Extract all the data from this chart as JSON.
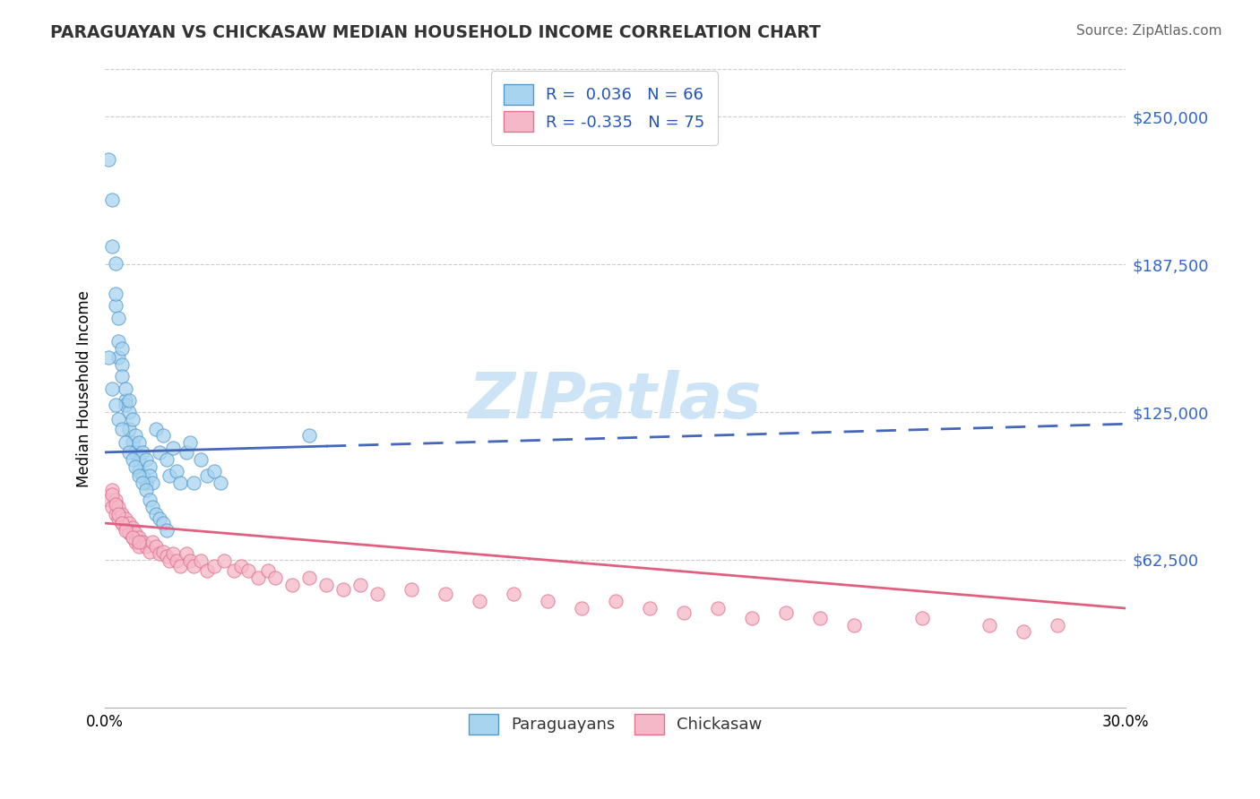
{
  "title": "PARAGUAYAN VS CHICKASAW MEDIAN HOUSEHOLD INCOME CORRELATION CHART",
  "source": "Source: ZipAtlas.com",
  "ylabel": "Median Household Income",
  "yticks": [
    0,
    62500,
    125000,
    187500,
    250000
  ],
  "ytick_labels": [
    "",
    "$62,500",
    "$125,000",
    "$187,500",
    "$250,000"
  ],
  "xlim": [
    0.0,
    0.3
  ],
  "ylim": [
    0,
    270000
  ],
  "legend_label1": "Paraguayans",
  "legend_label2": "Chickasaw",
  "color_paraguayan_fill": "#a8d4f0",
  "color_paraguayan_edge": "#5599cc",
  "color_chickasaw_fill": "#f5b8c8",
  "color_chickasaw_edge": "#e07090",
  "color_trend_paraguayan": "#4466bb",
  "color_trend_chickasaw": "#e06080",
  "watermark_color": "#cce4f5",
  "paraguayan_x": [
    0.001,
    0.002,
    0.002,
    0.003,
    0.003,
    0.003,
    0.004,
    0.004,
    0.004,
    0.005,
    0.005,
    0.005,
    0.006,
    0.006,
    0.006,
    0.007,
    0.007,
    0.007,
    0.008,
    0.008,
    0.009,
    0.009,
    0.01,
    0.01,
    0.01,
    0.011,
    0.011,
    0.012,
    0.012,
    0.013,
    0.013,
    0.014,
    0.015,
    0.016,
    0.017,
    0.018,
    0.019,
    0.02,
    0.021,
    0.022,
    0.024,
    0.025,
    0.026,
    0.028,
    0.03,
    0.032,
    0.034,
    0.001,
    0.002,
    0.003,
    0.004,
    0.005,
    0.006,
    0.007,
    0.008,
    0.009,
    0.01,
    0.011,
    0.012,
    0.013,
    0.014,
    0.015,
    0.016,
    0.017,
    0.018,
    0.06
  ],
  "paraguayan_y": [
    232000,
    195000,
    215000,
    170000,
    188000,
    175000,
    165000,
    155000,
    148000,
    145000,
    140000,
    152000,
    130000,
    135000,
    128000,
    125000,
    118000,
    130000,
    112000,
    122000,
    108000,
    115000,
    105000,
    112000,
    100000,
    108000,
    98000,
    105000,
    95000,
    102000,
    98000,
    95000,
    118000,
    108000,
    115000,
    105000,
    98000,
    110000,
    100000,
    95000,
    108000,
    112000,
    95000,
    105000,
    98000,
    100000,
    95000,
    148000,
    135000,
    128000,
    122000,
    118000,
    112000,
    108000,
    105000,
    102000,
    98000,
    95000,
    92000,
    88000,
    85000,
    82000,
    80000,
    78000,
    75000,
    115000
  ],
  "chickasaw_x": [
    0.001,
    0.002,
    0.002,
    0.003,
    0.003,
    0.004,
    0.004,
    0.005,
    0.005,
    0.006,
    0.006,
    0.007,
    0.007,
    0.008,
    0.008,
    0.009,
    0.009,
    0.01,
    0.01,
    0.011,
    0.012,
    0.013,
    0.014,
    0.015,
    0.016,
    0.017,
    0.018,
    0.019,
    0.02,
    0.021,
    0.022,
    0.024,
    0.025,
    0.026,
    0.028,
    0.03,
    0.032,
    0.035,
    0.038,
    0.04,
    0.042,
    0.045,
    0.048,
    0.05,
    0.055,
    0.06,
    0.065,
    0.07,
    0.075,
    0.08,
    0.09,
    0.1,
    0.11,
    0.12,
    0.13,
    0.14,
    0.15,
    0.16,
    0.17,
    0.18,
    0.19,
    0.2,
    0.21,
    0.22,
    0.24,
    0.26,
    0.27,
    0.28,
    0.002,
    0.003,
    0.004,
    0.005,
    0.006,
    0.008,
    0.01
  ],
  "chickasaw_y": [
    88000,
    85000,
    92000,
    82000,
    88000,
    80000,
    85000,
    78000,
    82000,
    76000,
    80000,
    74000,
    78000,
    72000,
    76000,
    70000,
    74000,
    72000,
    68000,
    70000,
    68000,
    66000,
    70000,
    68000,
    65000,
    66000,
    64000,
    62000,
    65000,
    62000,
    60000,
    65000,
    62000,
    60000,
    62000,
    58000,
    60000,
    62000,
    58000,
    60000,
    58000,
    55000,
    58000,
    55000,
    52000,
    55000,
    52000,
    50000,
    52000,
    48000,
    50000,
    48000,
    45000,
    48000,
    45000,
    42000,
    45000,
    42000,
    40000,
    42000,
    38000,
    40000,
    38000,
    35000,
    38000,
    35000,
    32000,
    35000,
    90000,
    86000,
    82000,
    78000,
    75000,
    72000,
    70000
  ],
  "trend_paraguayan_x0": 0.0,
  "trend_paraguayan_x1": 0.3,
  "trend_paraguayan_y0": 108000,
  "trend_paraguayan_y1": 120000,
  "trend_chickasaw_x0": 0.0,
  "trend_chickasaw_x1": 0.3,
  "trend_chickasaw_y0": 78000,
  "trend_chickasaw_y1": 42000
}
